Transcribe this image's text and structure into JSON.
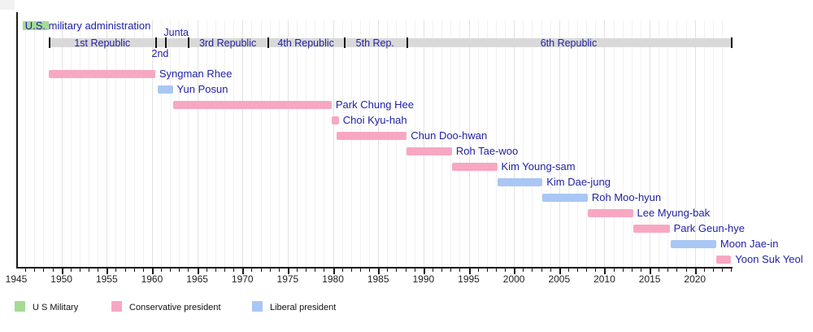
{
  "chart_data": {
    "type": "bar",
    "variant": "gantt-timeline",
    "description": "Timeline of South Korean republics and presidents",
    "x_axis": {
      "min": 1945,
      "max": 2024.2,
      "major_tick_step": 5,
      "minor_tick_step": 1,
      "major_tick_labels": [
        "1945",
        "1950",
        "1955",
        "1960",
        "1965",
        "1970",
        "1975",
        "1980",
        "1985",
        "1990",
        "1995",
        "2000",
        "2005",
        "2010",
        "2015",
        "2020"
      ],
      "grid": true
    },
    "us_military": {
      "label": "U.S. military administration",
      "start": 1945.7,
      "end": 1948.6
    },
    "republics": [
      {
        "label": "1st Republic",
        "start": 1948.6,
        "end": 1960.4,
        "label_pos": "inside"
      },
      {
        "label": "2nd",
        "start": 1960.4,
        "end": 1961.4,
        "label_pos": "below"
      },
      {
        "label": "Junta",
        "start": 1961.4,
        "end": 1963.95,
        "label_pos": "above"
      },
      {
        "label": "3rd Republic",
        "start": 1963.95,
        "end": 1972.8,
        "label_pos": "inside"
      },
      {
        "label": "4th Republic",
        "start": 1972.8,
        "end": 1981.2,
        "label_pos": "inside"
      },
      {
        "label": "5th Rep.",
        "start": 1981.2,
        "end": 1988.1,
        "label_pos": "inside"
      },
      {
        "label": "6th Republic",
        "start": 1988.1,
        "end": 2024.0,
        "label_pos": "inside"
      }
    ],
    "presidents": [
      {
        "name": "Syngman Rhee",
        "start": 1948.6,
        "end": 1960.35,
        "party": "conservative"
      },
      {
        "name": "Yun Posun",
        "start": 1960.6,
        "end": 1962.3,
        "party": "liberal"
      },
      {
        "name": "Park Chung Hee",
        "start": 1962.3,
        "end": 1979.85,
        "party": "conservative"
      },
      {
        "name": "Choi Kyu-hah",
        "start": 1979.9,
        "end": 1980.65,
        "party": "conservative"
      },
      {
        "name": "Chun Doo-hwan",
        "start": 1980.4,
        "end": 1988.15,
        "party": "conservative"
      },
      {
        "name": "Roh Tae-woo",
        "start": 1988.15,
        "end": 1993.15,
        "party": "conservative"
      },
      {
        "name": "Kim Young-sam",
        "start": 1993.15,
        "end": 1998.15,
        "party": "conservative"
      },
      {
        "name": "Kim Dae-jung",
        "start": 1998.15,
        "end": 2003.15,
        "party": "liberal"
      },
      {
        "name": "Roh Moo-hyun",
        "start": 2003.15,
        "end": 2008.15,
        "party": "liberal"
      },
      {
        "name": "Lee Myung-bak",
        "start": 2008.15,
        "end": 2013.15,
        "party": "conservative"
      },
      {
        "name": "Park Geun-hye",
        "start": 2013.15,
        "end": 2017.2,
        "party": "conservative"
      },
      {
        "name": "Moon Jae-in",
        "start": 2017.35,
        "end": 2022.35,
        "party": "liberal"
      },
      {
        "name": "Yoon Suk Yeol",
        "start": 2022.35,
        "end": 2024.0,
        "party": "conservative"
      }
    ],
    "legend": [
      {
        "label": "U S Military",
        "color": "#a7da96"
      },
      {
        "label": "Conservative president",
        "color": "#f8a7c3"
      },
      {
        "label": "Liberal president",
        "color": "#a9c7f4"
      }
    ],
    "colors": {
      "us_military": "#a7da96",
      "conservative": "#f8a7c3",
      "liberal": "#a9c7f4",
      "republic_bar": "#d9d9d9",
      "label_text": "#2222a6",
      "axis": "#1a1a1a"
    }
  }
}
